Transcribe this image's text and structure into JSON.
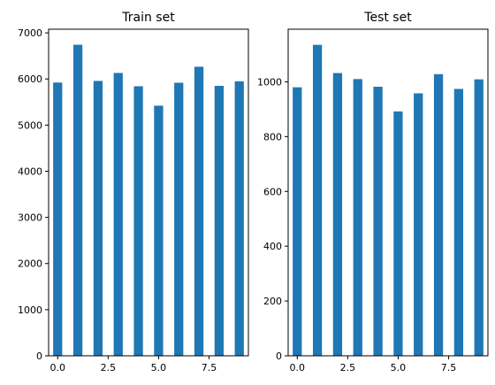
{
  "chart_data": [
    {
      "type": "bar",
      "title": "Train set",
      "xlabel": "",
      "ylabel": "",
      "x": [
        0,
        1,
        2,
        3,
        4,
        5,
        6,
        7,
        8,
        9
      ],
      "values": [
        5923,
        6742,
        5958,
        6131,
        5842,
        5421,
        5918,
        6265,
        5851,
        5949
      ],
      "xlim": [
        -0.45,
        9.45
      ],
      "ylim": [
        0,
        7079
      ],
      "xticks": [
        0,
        2.5,
        5,
        7.5
      ],
      "xtick_labels": [
        "0.0",
        "2.5",
        "5.0",
        "7.5"
      ],
      "yticks": [
        0,
        1000,
        2000,
        3000,
        4000,
        5000,
        6000,
        7000
      ],
      "ytick_labels": [
        "0",
        "1000",
        "2000",
        "3000",
        "4000",
        "5000",
        "6000",
        "7000"
      ],
      "bar_color": "#1f77b4",
      "grid": false,
      "legend": "none"
    },
    {
      "type": "bar",
      "title": "Test set",
      "xlabel": "",
      "ylabel": "",
      "x": [
        0,
        1,
        2,
        3,
        4,
        5,
        6,
        7,
        8,
        9
      ],
      "values": [
        980,
        1135,
        1032,
        1010,
        982,
        892,
        958,
        1028,
        974,
        1009
      ],
      "xlim": [
        -0.45,
        9.45
      ],
      "ylim": [
        0,
        1192
      ],
      "xticks": [
        0,
        2.5,
        5,
        7.5
      ],
      "xtick_labels": [
        "0.0",
        "2.5",
        "5.0",
        "7.5"
      ],
      "yticks": [
        0,
        200,
        400,
        600,
        800,
        1000
      ],
      "ytick_labels": [
        "0",
        "200",
        "400",
        "600",
        "800",
        "1000"
      ],
      "bar_color": "#1f77b4",
      "grid": false,
      "legend": "none"
    }
  ]
}
